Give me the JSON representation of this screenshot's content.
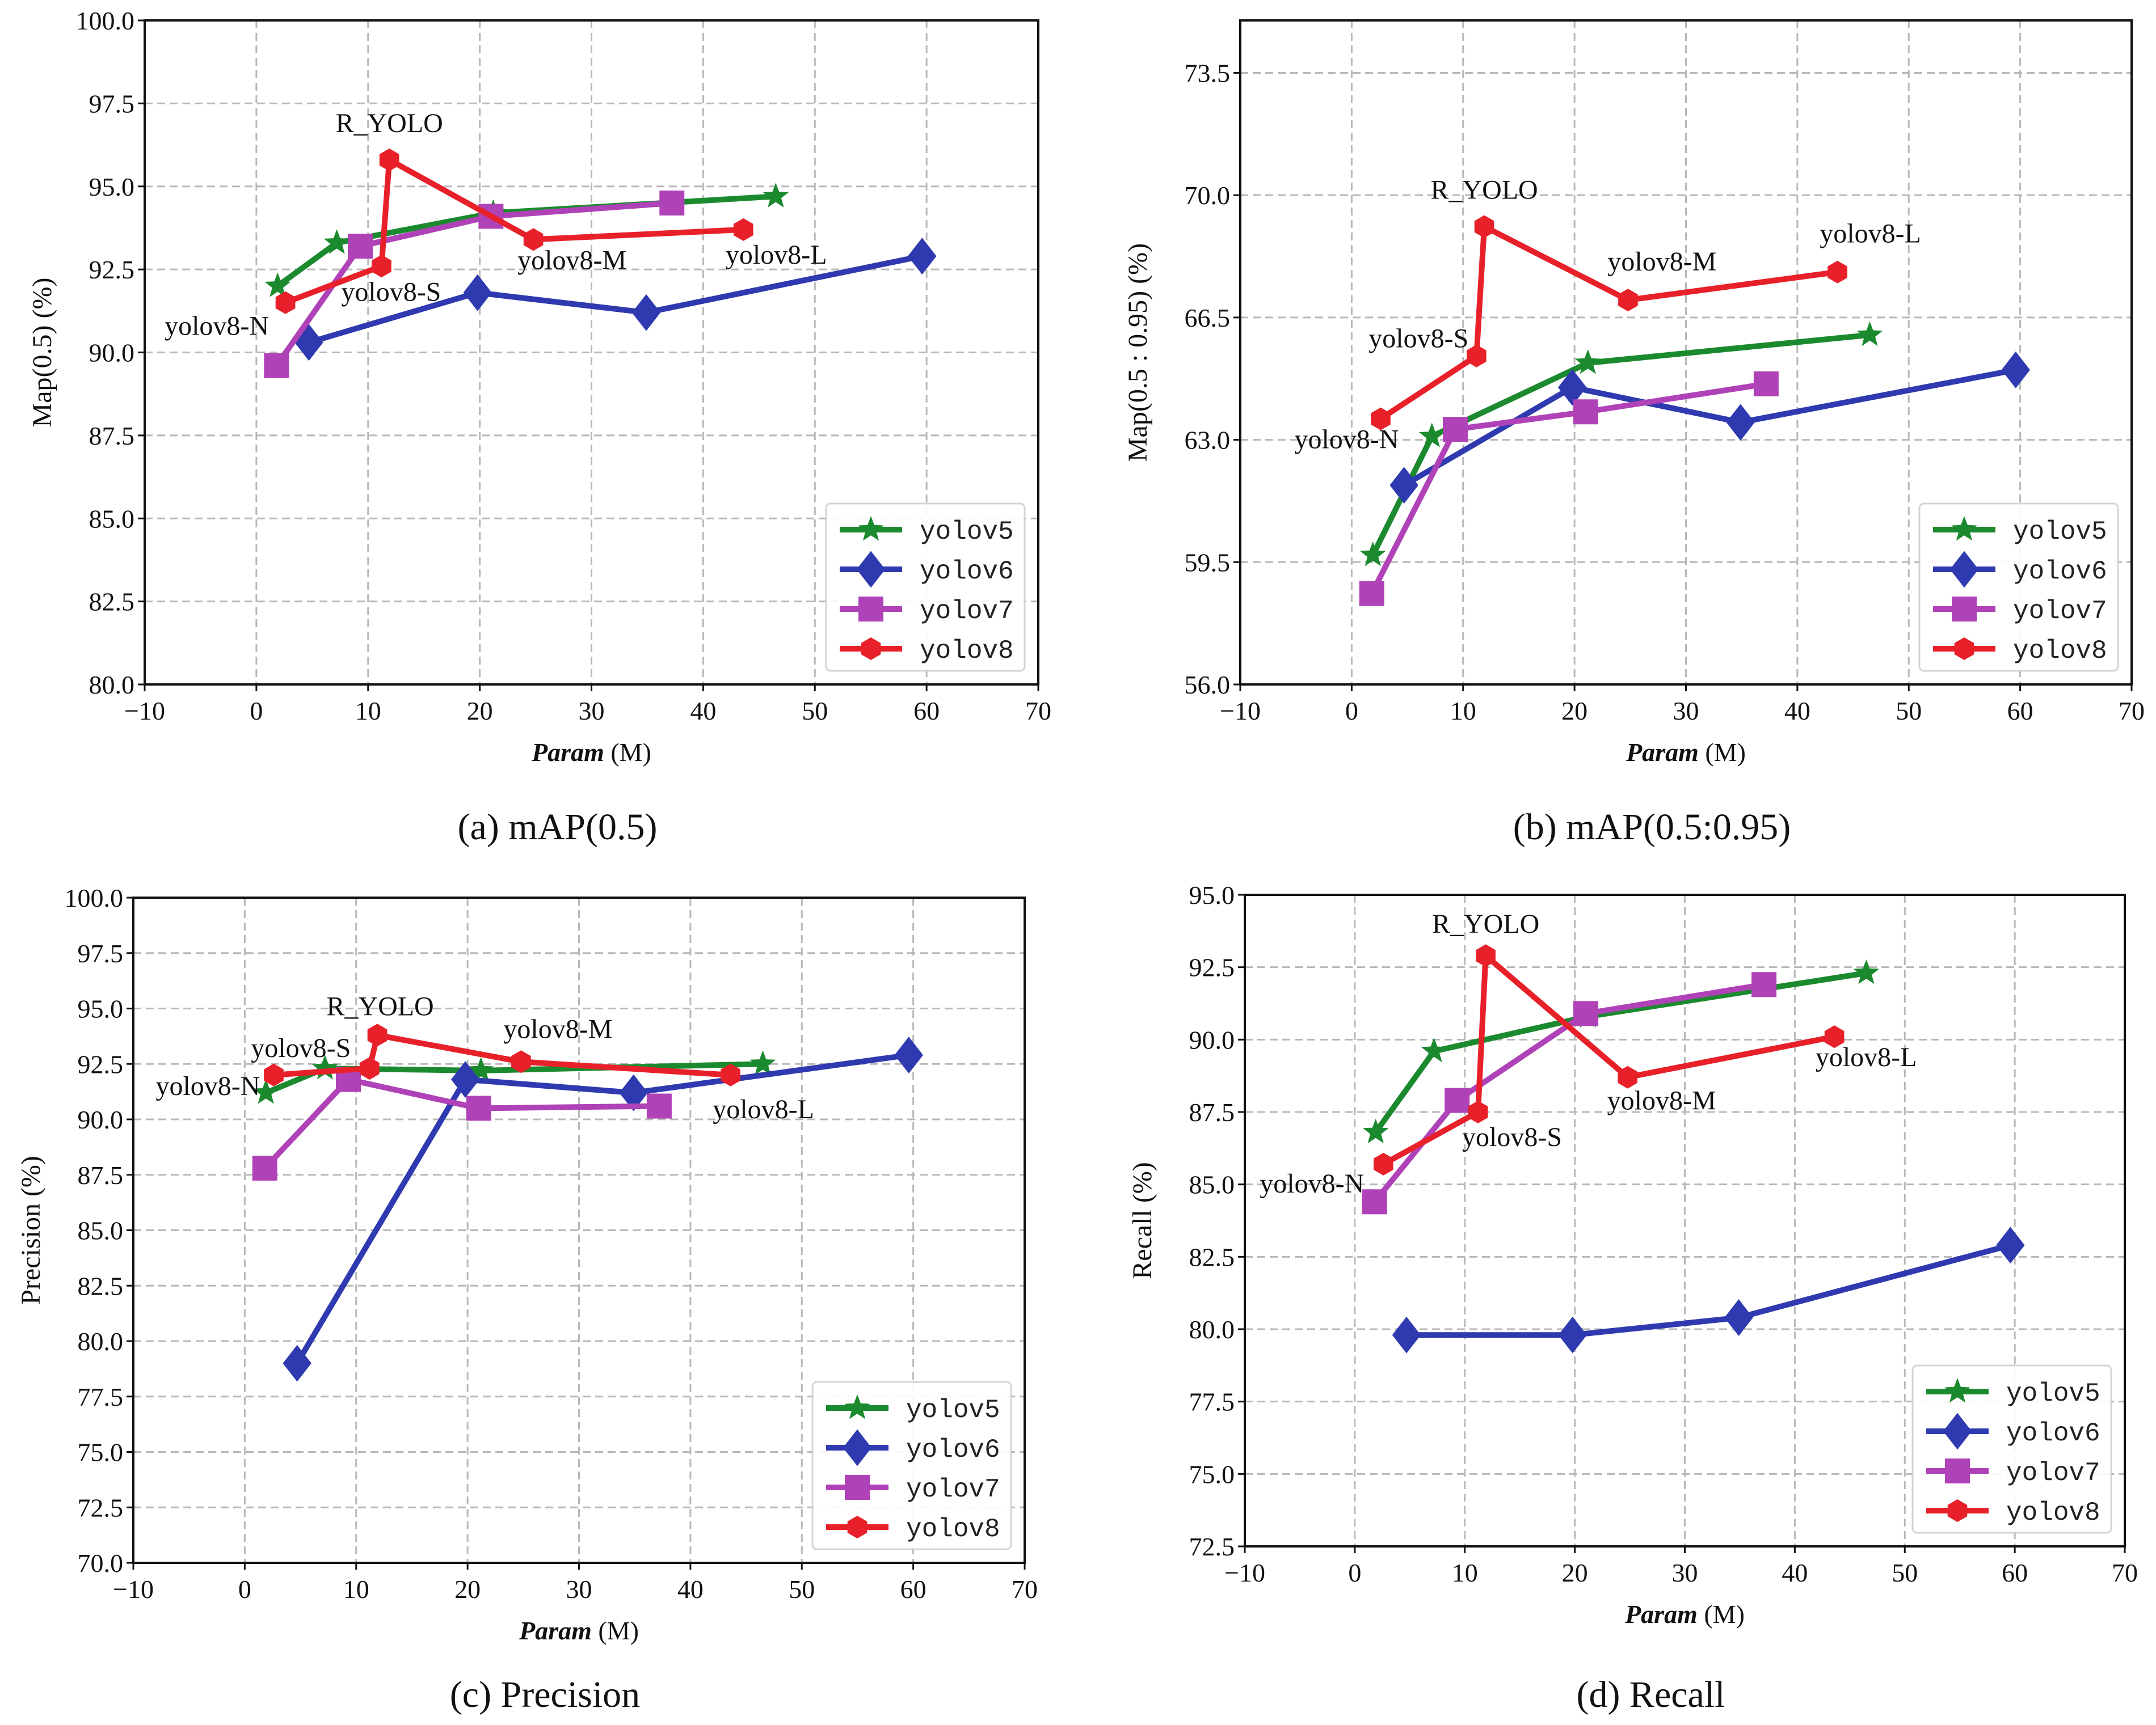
{
  "colors": {
    "yolov5": "#1b8a2e",
    "yolov6": "#2f3ab0",
    "yolov7": "#b042b8",
    "yolov8": "#e8202a"
  },
  "markers": {
    "yolov5": "star",
    "yolov6": "diamond",
    "yolov7": "square",
    "yolov8": "hexagon"
  },
  "chart_data": [
    {
      "type": "line",
      "caption": "(a) mAP(0.5)",
      "xlabel": "Param (M)",
      "ylabel": "Map(0.5) (%)",
      "xlim": [
        -10,
        70
      ],
      "ylim": [
        80,
        100
      ],
      "xticks": [
        -10,
        0,
        10,
        20,
        30,
        40,
        50,
        60,
        70
      ],
      "yticks": [
        "80.0",
        "82.5",
        "85.0",
        "87.5",
        "90.0",
        "92.5",
        "95.0",
        "97.5",
        "100.0"
      ],
      "grid": true,
      "legend": "bottom-right",
      "series": [
        {
          "name": "yolov5",
          "x": [
            1.9,
            7.2,
            21.2,
            46.5
          ],
          "y": [
            92.0,
            93.3,
            94.2,
            94.7
          ]
        },
        {
          "name": "yolov6",
          "x": [
            4.7,
            19.8,
            34.9,
            59.6
          ],
          "y": [
            90.3,
            91.8,
            91.2,
            92.9
          ]
        },
        {
          "name": "yolov7",
          "x": [
            1.8,
            9.3,
            21.0,
            37.2
          ],
          "y": [
            89.6,
            93.2,
            94.1,
            94.5
          ]
        },
        {
          "name": "yolov8",
          "x": [
            2.6,
            11.2,
            11.9,
            24.8,
            43.6
          ],
          "y": [
            91.5,
            92.6,
            95.8,
            93.4,
            93.7
          ]
        }
      ],
      "annotations": [
        {
          "text": "yolov8-N",
          "point": 0
        },
        {
          "text": "yolov8-S",
          "point": 1
        },
        {
          "text": "R_YOLO",
          "point": 2
        },
        {
          "text": "yolov8-M",
          "point": 3
        },
        {
          "text": "yolov8-L",
          "point": 4
        }
      ]
    },
    {
      "type": "line",
      "caption": "(b) mAP(0.5:0.95)",
      "xlabel": "Param (M)",
      "ylabel": "Map(0.5 : 0.95) (%)",
      "xlim": [
        -10,
        70
      ],
      "ylim": [
        56,
        75
      ],
      "xticks": [
        -10,
        0,
        10,
        20,
        30,
        40,
        50,
        60,
        70
      ],
      "yticks": [
        "56.0",
        "59.5",
        "63.0",
        "66.5",
        "70.0",
        "73.5"
      ],
      "grid": true,
      "legend": "bottom-right",
      "series": [
        {
          "name": "yolov5",
          "x": [
            1.9,
            7.2,
            21.2,
            46.5
          ],
          "y": [
            59.7,
            63.1,
            65.2,
            66.0
          ]
        },
        {
          "name": "yolov6",
          "x": [
            4.7,
            19.8,
            34.9,
            59.6
          ],
          "y": [
            61.7,
            64.5,
            63.5,
            65.0
          ]
        },
        {
          "name": "yolov7",
          "x": [
            1.8,
            9.3,
            21.0,
            37.2
          ],
          "y": [
            58.6,
            63.3,
            63.8,
            64.6
          ]
        },
        {
          "name": "yolov8",
          "x": [
            2.6,
            11.2,
            11.9,
            24.8,
            43.6
          ],
          "y": [
            63.6,
            65.4,
            69.1,
            67.0,
            67.8
          ]
        }
      ],
      "annotations": [
        {
          "text": "yolov8-N",
          "point": 0
        },
        {
          "text": "yolov8-S",
          "point": 1
        },
        {
          "text": "R_YOLO",
          "point": 2
        },
        {
          "text": "yolov8-M",
          "point": 3
        },
        {
          "text": "yolov8-L",
          "point": 4
        }
      ]
    },
    {
      "type": "line",
      "caption": "(c) Precision",
      "xlabel": "Param (M)",
      "ylabel": "Precision (%)",
      "xlim": [
        -10,
        70
      ],
      "ylim": [
        70,
        100
      ],
      "xticks": [
        -10,
        0,
        10,
        20,
        30,
        40,
        50,
        60,
        70
      ],
      "yticks": [
        "70.0",
        "72.5",
        "75.0",
        "77.5",
        "80.0",
        "82.5",
        "85.0",
        "87.5",
        "90.0",
        "92.5",
        "95.0",
        "97.5",
        "100.0"
      ],
      "grid": true,
      "legend": "bottom-right",
      "series": [
        {
          "name": "yolov5",
          "x": [
            1.9,
            7.2,
            21.2,
            46.5
          ],
          "y": [
            91.2,
            92.3,
            92.2,
            92.5
          ]
        },
        {
          "name": "yolov6",
          "x": [
            4.7,
            19.8,
            34.9,
            59.6
          ],
          "y": [
            79.0,
            91.8,
            91.2,
            92.9
          ]
        },
        {
          "name": "yolov7",
          "x": [
            1.8,
            9.3,
            21.0,
            37.2
          ],
          "y": [
            87.8,
            91.8,
            90.5,
            90.6
          ]
        },
        {
          "name": "yolov8",
          "x": [
            2.6,
            11.2,
            11.9,
            24.8,
            43.6
          ],
          "y": [
            92.0,
            92.3,
            93.8,
            92.6,
            92.0
          ]
        }
      ],
      "annotations": [
        {
          "text": "yolov8-N",
          "point": 0
        },
        {
          "text": "yolov8-S",
          "point": 1
        },
        {
          "text": "R_YOLO",
          "point": 2
        },
        {
          "text": "yolov8-M",
          "point": 3
        },
        {
          "text": "yolov8-L",
          "point": 4
        }
      ]
    },
    {
      "type": "line",
      "caption": "(d) Recall",
      "xlabel": "Param (M)",
      "ylabel": "Recall (%)",
      "xlim": [
        -10,
        70
      ],
      "ylim": [
        72.5,
        95
      ],
      "xticks": [
        -10,
        0,
        10,
        20,
        30,
        40,
        50,
        60,
        70
      ],
      "yticks": [
        "72.5",
        "75.0",
        "77.5",
        "80.0",
        "82.5",
        "85.0",
        "87.5",
        "90.0",
        "92.5",
        "95.0"
      ],
      "grid": true,
      "legend": "bottom-right",
      "series": [
        {
          "name": "yolov5",
          "x": [
            1.9,
            7.2,
            21.2,
            46.5
          ],
          "y": [
            86.8,
            89.6,
            90.8,
            92.3
          ]
        },
        {
          "name": "yolov6",
          "x": [
            4.7,
            19.8,
            34.9,
            59.6
          ],
          "y": [
            79.8,
            79.8,
            80.4,
            82.9
          ]
        },
        {
          "name": "yolov7",
          "x": [
            1.8,
            9.3,
            21.0,
            37.2
          ],
          "y": [
            84.4,
            87.9,
            90.9,
            91.9
          ]
        },
        {
          "name": "yolov8",
          "x": [
            2.6,
            11.2,
            11.9,
            24.8,
            43.6
          ],
          "y": [
            85.7,
            87.5,
            92.9,
            88.7,
            90.1
          ]
        }
      ],
      "annotations": [
        {
          "text": "yolov8-N",
          "point": 0
        },
        {
          "text": "yolov8-S",
          "point": 1
        },
        {
          "text": "R_YOLO",
          "point": 2
        },
        {
          "text": "yolov8-M",
          "point": 3
        },
        {
          "text": "yolov8-L",
          "point": 4
        }
      ]
    }
  ]
}
